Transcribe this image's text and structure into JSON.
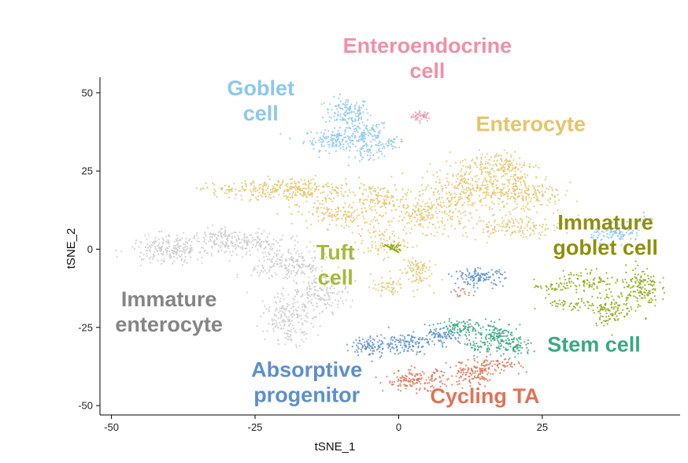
{
  "chart_data": {
    "type": "scatter",
    "title": "",
    "xlabel": "tSNE_1",
    "ylabel": "tSNE_2",
    "xlim": [
      -52,
      49
    ],
    "ylim": [
      -53,
      55
    ],
    "xticks": [
      -50,
      -25,
      0,
      25
    ],
    "yticks": [
      -50,
      -25,
      0,
      25,
      50
    ],
    "grid": false,
    "clusters": [
      {
        "name": "Enteroendocrine cell",
        "lines": [
          "Enteroendocrine",
          "cell"
        ],
        "color": "#f08fa6",
        "label_at": [
          5,
          61
        ],
        "blobs": [
          [
            4,
            42.5,
            1.6,
            1.5,
            40
          ]
        ]
      },
      {
        "name": "Goblet cell",
        "lines": [
          "Goblet",
          "cell"
        ],
        "color": "#8cc8ee",
        "label_at": [
          -24,
          47.5
        ],
        "blobs": [
          [
            -9,
            44,
            3.5,
            4,
            130
          ],
          [
            -11,
            35,
            5,
            3,
            150
          ],
          [
            -6,
            37,
            4,
            4,
            110
          ],
          [
            -5,
            31,
            3,
            3,
            50
          ],
          [
            -1,
            34,
            2,
            1.5,
            30
          ]
        ]
      },
      {
        "name": "Enterocyte",
        "lines": [
          "Enterocyte"
        ],
        "color": "#e5c46a",
        "label_at": [
          23,
          40
        ],
        "blobs": [
          [
            -18,
            19,
            10,
            3.5,
            260
          ],
          [
            -28,
            19,
            6,
            2,
            70
          ],
          [
            -10,
            11,
            7,
            4,
            140
          ],
          [
            -3,
            16,
            4,
            4,
            100
          ],
          [
            5,
            11,
            6,
            5,
            200
          ],
          [
            12,
            19,
            8,
            6,
            300
          ],
          [
            17,
            27,
            6,
            4,
            150
          ],
          [
            22,
            18,
            6,
            6,
            200
          ],
          [
            20,
            7,
            8,
            3,
            140
          ],
          [
            -3,
            2,
            4,
            4,
            80
          ],
          [
            3,
            -7,
            2.5,
            5,
            90
          ],
          [
            -2,
            -12,
            2.5,
            2.5,
            50
          ]
        ]
      },
      {
        "name": "Immature goblet cell",
        "lines": [
          "Immature",
          "goblet cell"
        ],
        "color": "#8fa80f",
        "label_at": [
          36,
          4.5
        ],
        "blobs": [
          [
            -1,
            0.5,
            1.5,
            1,
            25
          ],
          [
            27,
            -12,
            3,
            2,
            40
          ],
          [
            33,
            -10,
            4,
            3,
            80
          ],
          [
            37,
            -19,
            3,
            5,
            110
          ],
          [
            42,
            -12,
            3,
            6,
            150
          ],
          [
            30,
            -18,
            4,
            2,
            50
          ]
        ]
      },
      {
        "name": "Immature goblet cell (light)",
        "lines": [],
        "color": "#8cc8ee",
        "label_at": null,
        "blobs": [
          [
            38,
            5,
            4,
            2.5,
            110
          ],
          [
            43,
            9,
            1.5,
            1.5,
            20
          ]
        ]
      },
      {
        "name": "Tuft cell",
        "lines": [
          "Tuft",
          "cell"
        ],
        "color": "#a8b83c",
        "label_at": [
          -11,
          -5
        ],
        "blobs": []
      },
      {
        "name": "Immature enterocyte",
        "lines": [
          "Immature",
          "enterocyte"
        ],
        "color": "#cccccc",
        "label_at": [
          -40,
          -20
        ],
        "blobs": [
          [
            -40,
            0,
            6,
            4,
            220
          ],
          [
            -28,
            2,
            8,
            3,
            180
          ],
          [
            -19,
            -5,
            6,
            6,
            220
          ],
          [
            -19,
            -22,
            4,
            7,
            200
          ],
          [
            -13,
            -14,
            4,
            5,
            140
          ],
          [
            -31,
            5,
            3,
            2,
            40
          ]
        ]
      },
      {
        "name": "Absorptive progenitor",
        "lines": [
          "Absorptive",
          "progenitor"
        ],
        "color": "#5b8fcf",
        "label_at": [
          -16,
          -42.5
        ],
        "blobs": [
          [
            -5,
            -31,
            3,
            3,
            90
          ],
          [
            1,
            -30,
            4,
            3,
            120
          ],
          [
            7,
            -28,
            3,
            2.5,
            80
          ],
          [
            14,
            -9,
            4,
            2.5,
            120
          ]
        ]
      },
      {
        "name": "Stem cell",
        "lines": [
          "Stem cell"
        ],
        "color": "#3aa980",
        "label_at": [
          34,
          -30.5
        ],
        "blobs": [
          [
            11,
            -25,
            4,
            2.5,
            100
          ],
          [
            17,
            -27,
            3,
            3,
            110
          ],
          [
            20,
            -31,
            3,
            3,
            90
          ],
          [
            14,
            -31,
            2,
            2,
            40
          ]
        ]
      },
      {
        "name": "Cycling TA",
        "lines": [
          "Cycling TA"
        ],
        "color": "#e07355",
        "label_at": [
          15,
          -47
        ],
        "blobs": [
          [
            3,
            -42,
            5,
            3,
            150
          ],
          [
            13,
            -40,
            4,
            4,
            130
          ],
          [
            17,
            -37,
            4,
            2,
            60
          ],
          [
            11,
            -14,
            2,
            1,
            15
          ]
        ]
      }
    ]
  }
}
